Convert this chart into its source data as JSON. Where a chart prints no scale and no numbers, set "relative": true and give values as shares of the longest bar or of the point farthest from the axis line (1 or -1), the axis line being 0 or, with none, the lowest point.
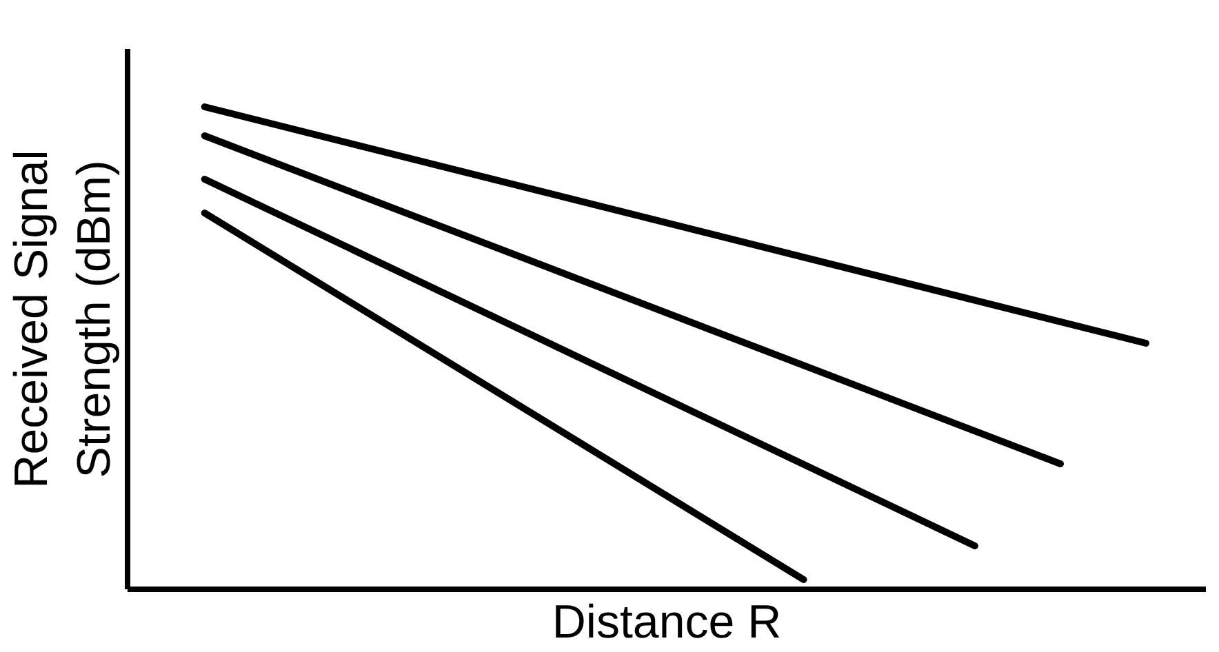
{
  "chart_data": {
    "type": "line",
    "relative": true,
    "xlabel": "Distance R",
    "ylabel": "Received Signal Strength (dBm)",
    "tick_labels": false,
    "marker": "none",
    "line_style": "solid",
    "categories": [
      null,
      null,
      null,
      null,
      null,
      null,
      null,
      null,
      null,
      null,
      null,
      null
    ],
    "series": [
      {
        "color": "#000000",
        "values": [
          1,
          null,
          null,
          null,
          null,
          null,
          null,
          null,
          null,
          null,
          null,
          0.51
        ]
      },
      {
        "color": "#000000",
        "values": [
          0.94,
          null,
          null,
          null,
          null,
          null,
          null,
          null,
          null,
          null,
          0.26,
          null
        ]
      },
      {
        "color": "#000000",
        "values": [
          0.85,
          null,
          null,
          null,
          null,
          null,
          null,
          null,
          null,
          0.09,
          null,
          null
        ]
      },
      {
        "color": "#000000",
        "values": [
          0.78,
          null,
          null,
          null,
          null,
          null,
          null,
          0.02,
          null,
          null,
          null,
          null
        ]
      }
    ]
  }
}
